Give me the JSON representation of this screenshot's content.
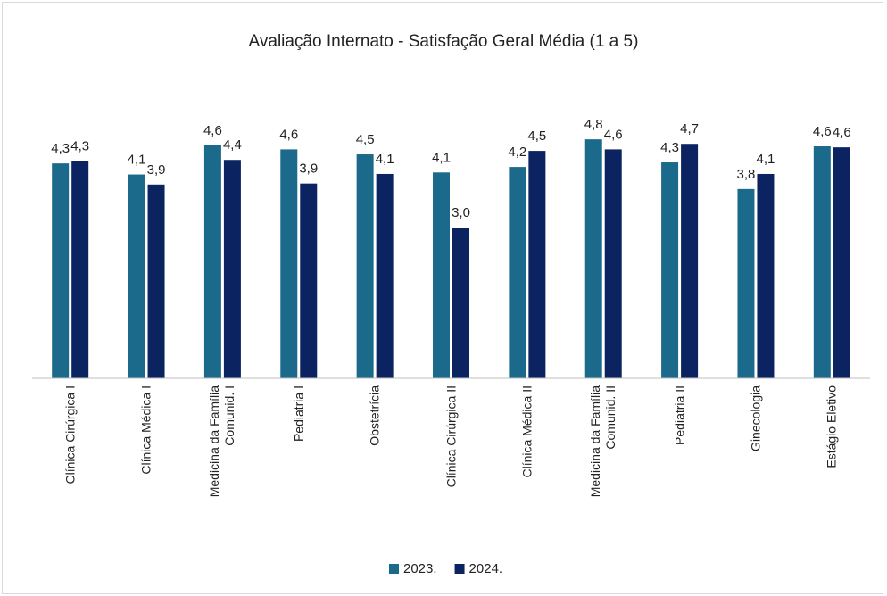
{
  "chart_data": {
    "type": "bar",
    "title": "Avaliação Internato - Satisfação Geral Média (1 a 5)",
    "categories": [
      "Clínica Cirúrgica I",
      "Clínica Médica I",
      "Medicina da Família Comunid. I",
      "Pediatria I",
      "Obstetrícia",
      "Clínica Cirúrgica II",
      "Clínica Médica II",
      "Medicina da Família Comunid. II",
      "Pediatria II",
      "Ginecologia",
      "Estágio Eletivo"
    ],
    "series": [
      {
        "name": "2023.",
        "color": "#1b6a8c",
        "values": [
          4.28,
          4.06,
          4.64,
          4.56,
          4.46,
          4.1,
          4.21,
          4.76,
          4.3,
          3.77,
          4.62
        ],
        "value_labels": [
          "4,3",
          "4,1",
          "4,6",
          "4,6",
          "4,5",
          "4,1",
          "4,2",
          "4,8",
          "4,3",
          "3,8",
          "4,6"
        ]
      },
      {
        "name": "2024.",
        "color": "#0b2461",
        "values": [
          4.33,
          3.86,
          4.35,
          3.88,
          4.07,
          3.0,
          4.53,
          4.56,
          4.67,
          4.07,
          4.6
        ],
        "value_labels": [
          "4,3",
          "3,9",
          "4,4",
          "3,9",
          "4,1",
          "3,0",
          "4,5",
          "4,6",
          "4,7",
          "4,1",
          "4,6"
        ]
      }
    ],
    "ylim": [
      0,
      5.9
    ],
    "legend": "bottom"
  }
}
